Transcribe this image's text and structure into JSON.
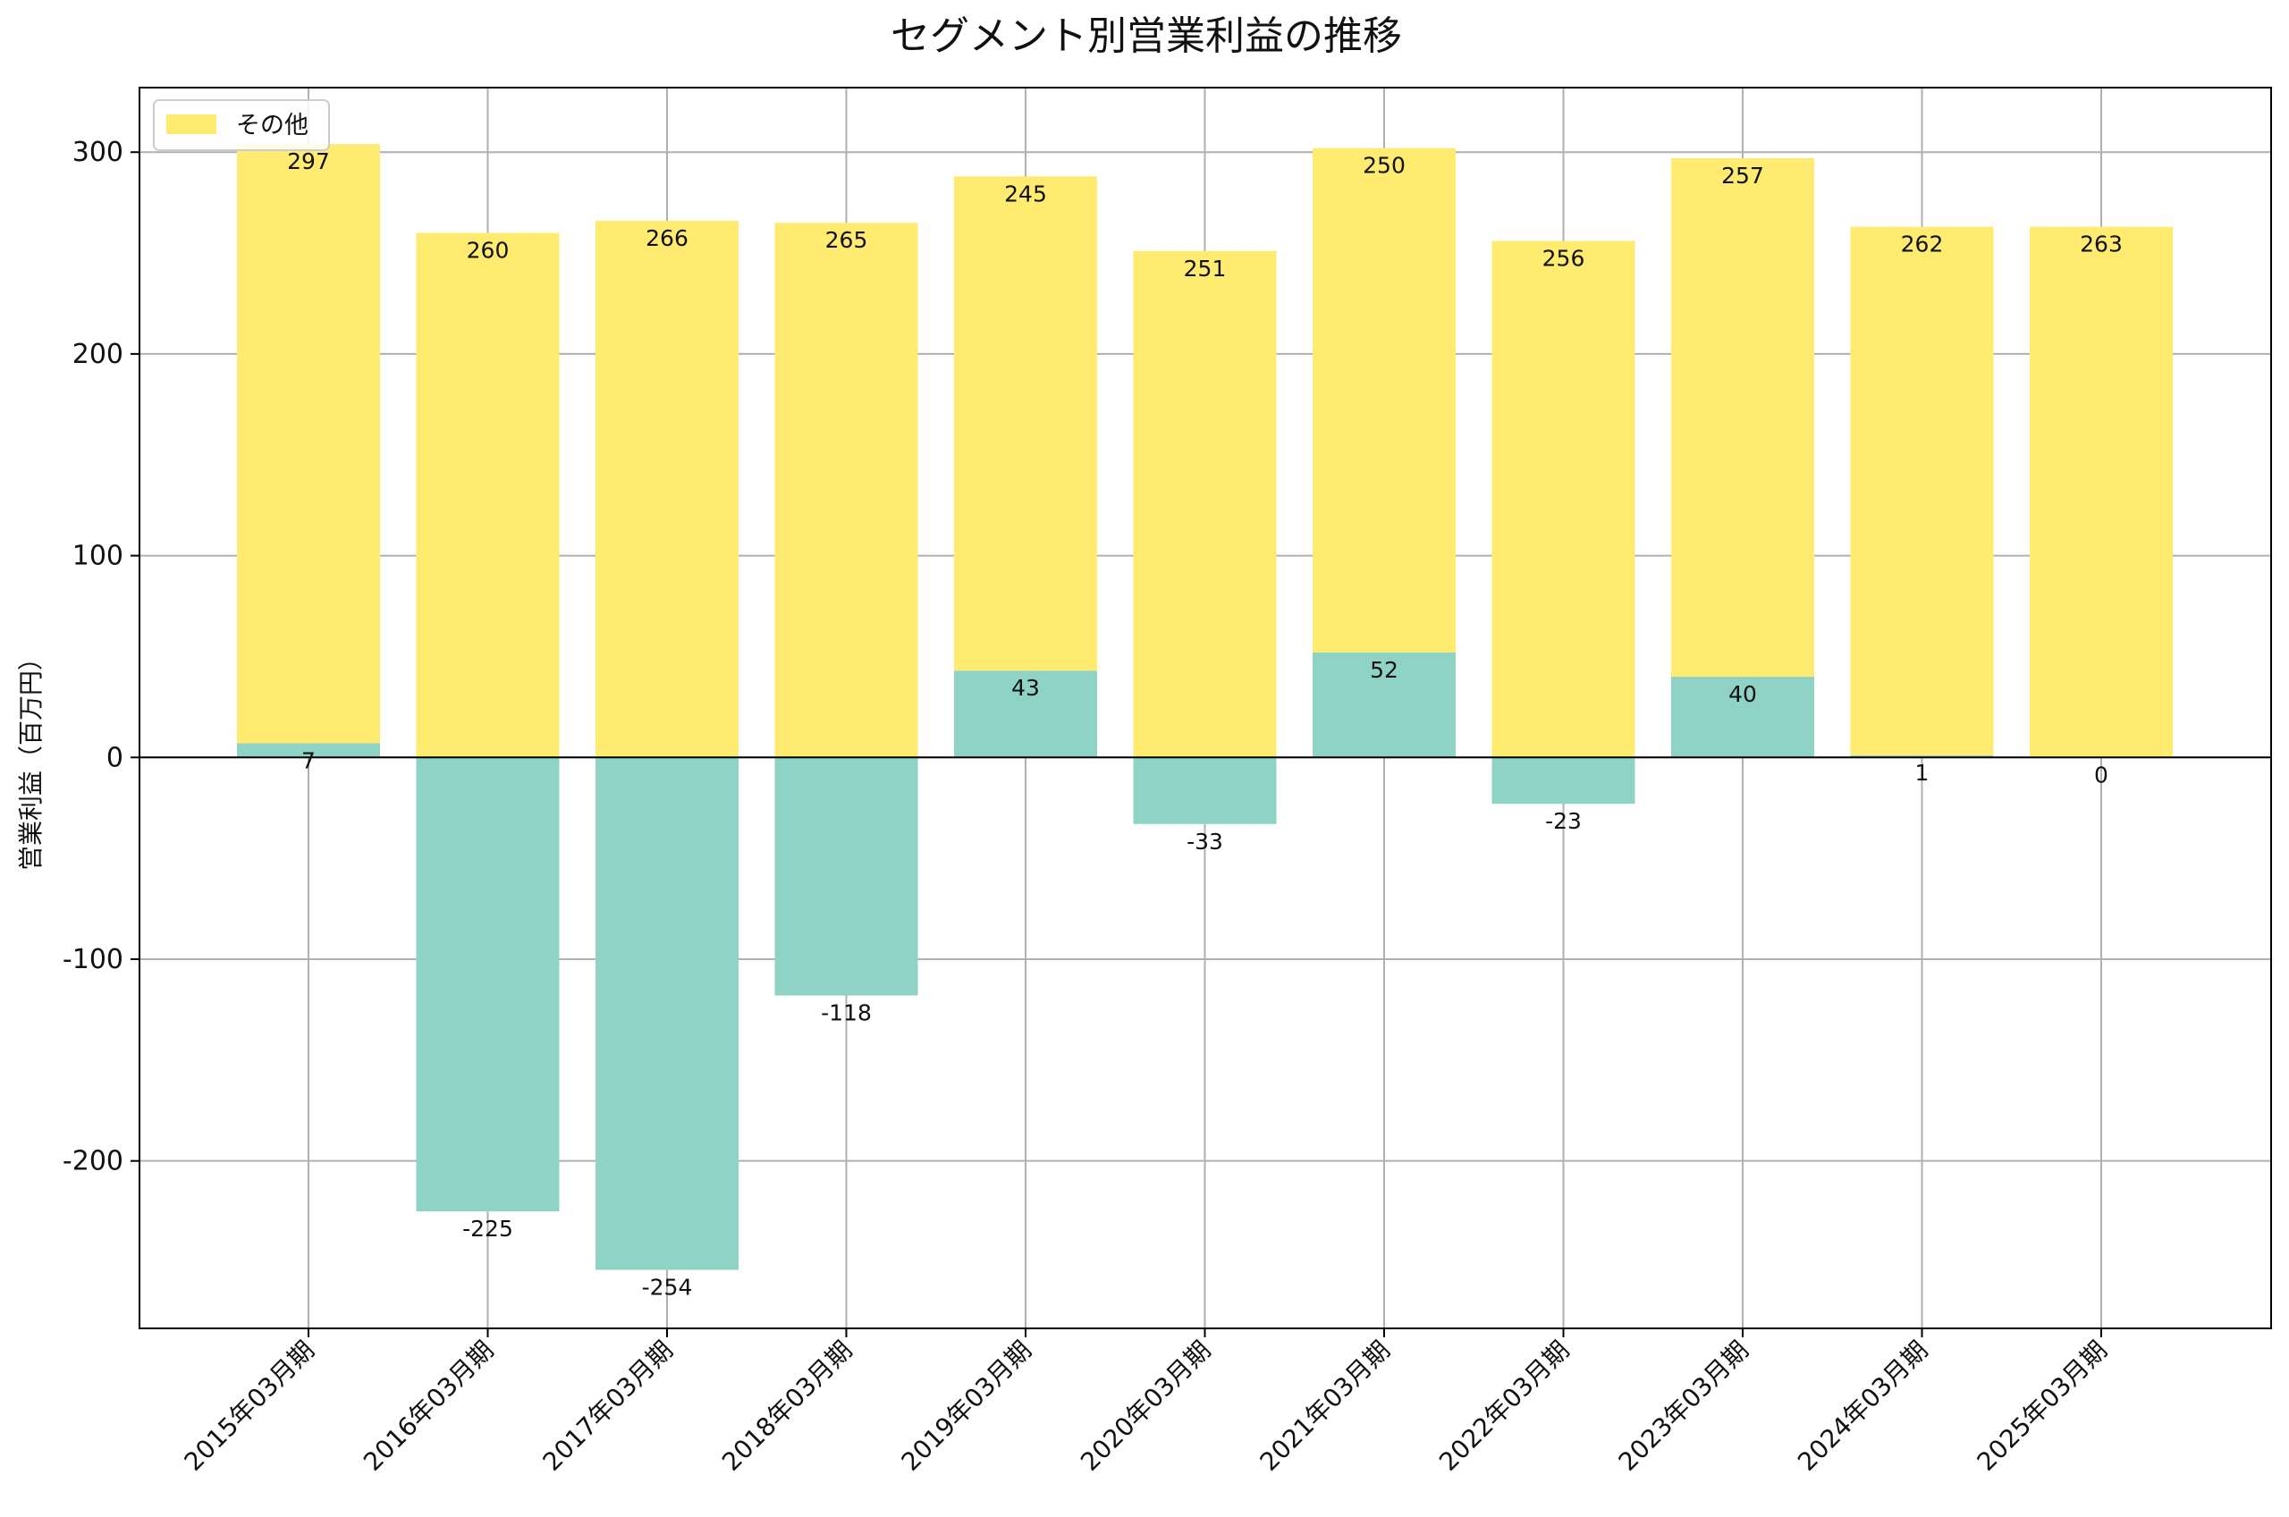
{
  "chart_data": {
    "type": "bar",
    "stacked": true,
    "title": "セグメント別営業利益の推移",
    "xlabel": "",
    "ylabel": "営業利益（百万円）",
    "ylim": [
      -283,
      332
    ],
    "yticks": [
      300,
      200,
      100,
      0,
      -100,
      -200
    ],
    "grid": true,
    "legend_position": "top-left",
    "categories": [
      "2015年03月期",
      "2016年03月期",
      "2017年03月期",
      "2018年03月期",
      "2019年03月期",
      "2020年03月期",
      "2021年03月期",
      "2022年03月期",
      "2023年03月期",
      "2024年03月期",
      "2025年03月期"
    ],
    "series": [
      {
        "name": "",
        "color": "#8fd3c6",
        "values": [
          7,
          -225,
          -254,
          -118,
          43,
          -33,
          52,
          -23,
          40,
          1,
          0
        ],
        "labels": [
          "7",
          "-225",
          "-254",
          "-118",
          "43",
          "-33",
          "52",
          "-23",
          "40",
          "1",
          "0"
        ]
      },
      {
        "name": "その他",
        "color": "#ffeb70",
        "values": [
          297,
          260,
          266,
          265,
          245,
          251,
          250,
          256,
          257,
          262,
          263
        ],
        "labels": [
          "297",
          "260",
          "266",
          "265",
          "245",
          "251",
          "250",
          "256",
          "257",
          "262",
          "263"
        ]
      }
    ]
  }
}
